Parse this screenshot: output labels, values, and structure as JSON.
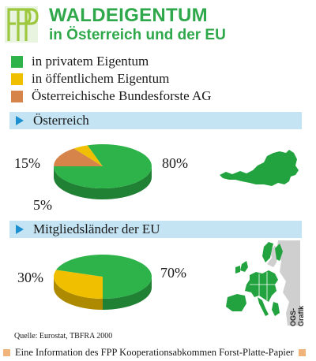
{
  "header": {
    "logo_text": "FPP",
    "title": "WALDEIGENTUM",
    "subtitle": "in Österreich und der EU"
  },
  "legend": [
    {
      "label": "in privatem Eigentum",
      "color": "#2db34a"
    },
    {
      "label": "in öffentlichem Eigentum",
      "color": "#f0c000"
    },
    {
      "label": "Österreichische Bundesforste AG",
      "color": "#d6844a"
    }
  ],
  "chart_data": [
    {
      "type": "pie",
      "title": "Österreich",
      "slices": [
        {
          "label": "in privatem Eigentum",
          "value": 80,
          "value_label": "80%",
          "color": "#2db34a"
        },
        {
          "label": "in öffentlichem Eigentum",
          "value": 5,
          "value_label": "5%",
          "color": "#f0c000"
        },
        {
          "label": "Österreichische Bundesforste AG",
          "value": 15,
          "value_label": "15%",
          "color": "#d6844a"
        }
      ]
    },
    {
      "type": "pie",
      "title": "Mitgliedsländer der EU",
      "slices": [
        {
          "label": "in privatem Eigentum",
          "value": 70,
          "value_label": "70%",
          "color": "#2db34a"
        },
        {
          "label": "in öffentlichem Eigentum",
          "value": 30,
          "value_label": "30%",
          "color": "#f0c000"
        }
      ]
    }
  ],
  "source": "Quelle: Eurostat, TBFRA 2000",
  "credit": "OGS-Grafik",
  "footer": "Eine Information des FPP Kooperationsabkommen Forst-Platte-Papier",
  "colors": {
    "accent": "#2ea84a",
    "section_bar": "#c4e4f3",
    "arrow": "#1c8fd0",
    "footer_square": "#f0b37a",
    "map_green": "#22a33f",
    "map_grey": "#cfcfcf"
  }
}
